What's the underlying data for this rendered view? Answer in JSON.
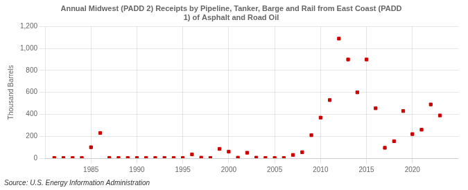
{
  "chart_data": {
    "type": "scatter",
    "title": "Annual Midwest (PADD 2) Receipts by Pipeline, Tanker, Barge and Rail from East Coast (PADD\n1) of Asphalt and Road Oil",
    "y_label": "Thousand Barrels",
    "annotations": [
      "Source: U.S. Energy Information Administration"
    ],
    "x": [
      1981,
      1982,
      1983,
      1984,
      1985,
      1986,
      1987,
      1988,
      1989,
      1990,
      1991,
      1992,
      1993,
      1994,
      1995,
      1996,
      1997,
      1998,
      1999,
      2000,
      2001,
      2002,
      2003,
      2004,
      2005,
      2006,
      2007,
      2008,
      2009,
      2010,
      2011,
      2012,
      2013,
      2014,
      2015,
      2016,
      2017,
      2018,
      2019,
      2020,
      2021,
      2022,
      2023
    ],
    "values": [
      2,
      2,
      2,
      3,
      100,
      230,
      3,
      2,
      2,
      2,
      2,
      2,
      2,
      2,
      2,
      35,
      5,
      2,
      85,
      60,
      5,
      50,
      5,
      2,
      2,
      2,
      30,
      55,
      210,
      370,
      530,
      1090,
      900,
      600,
      900,
      455,
      95,
      155,
      430,
      220,
      260,
      490,
      390
    ],
    "color": "#cc0000",
    "marker": "square",
    "xlim": [
      1980,
      2025
    ],
    "xticks": [
      1985,
      1990,
      1995,
      2000,
      2005,
      2010,
      2015,
      2020
    ],
    "ylim": [
      0,
      1200
    ],
    "yticks": [
      0,
      200,
      400,
      600,
      800,
      {
        "value": 1000,
        "label": "1,000"
      },
      {
        "value": 1200,
        "label": "1,200"
      }
    ],
    "grid": true
  }
}
